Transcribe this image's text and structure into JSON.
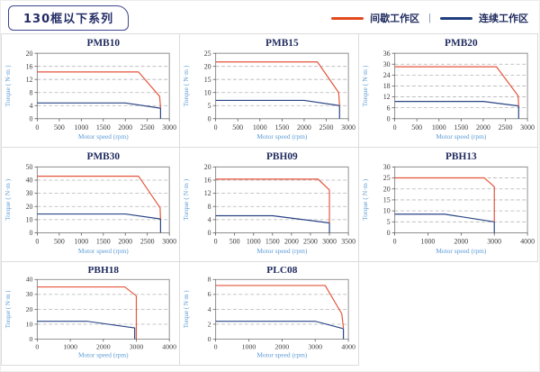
{
  "header": {
    "title": "130框以下系列",
    "legend_separator": "|",
    "legend": [
      {
        "label": "间歇工作区",
        "color": "#e2491f"
      },
      {
        "label": "连续工作区",
        "color": "#1f3e7d"
      }
    ]
  },
  "colors": {
    "intermittent": "#e4553c",
    "continuous": "#2a4485"
  },
  "chart_data": [
    {
      "type": "line",
      "title": "PMB10",
      "xlabel": "Motor speed (rpm)",
      "ylabel": "Torque ( N·m )",
      "xlim": [
        0,
        3000
      ],
      "ylim": [
        0,
        20
      ],
      "xticks": [
        0,
        500,
        1000,
        1500,
        2000,
        2500,
        3000
      ],
      "yticks": [
        0,
        4,
        8,
        12,
        16,
        20
      ],
      "grid": "dashed-horizontal",
      "legend_position": "none",
      "series": [
        {
          "name": "间歇工作区",
          "color": "intermittent",
          "points": [
            [
              0,
              14.3
            ],
            [
              2300,
              14.3
            ],
            [
              2780,
              6.8
            ],
            [
              2800,
              3.4
            ]
          ]
        },
        {
          "name": "连续工作区",
          "color": "continuous",
          "points": [
            [
              0,
              4.8
            ],
            [
              2000,
              4.8
            ],
            [
              2800,
              3.2
            ],
            [
              2800,
              0
            ]
          ]
        }
      ]
    },
    {
      "type": "line",
      "title": "PMB15",
      "xlabel": "Motor speed (rpm)",
      "ylabel": "Torque ( N·m )",
      "xlim": [
        0,
        3000
      ],
      "ylim": [
        0,
        25
      ],
      "xticks": [
        0,
        500,
        1000,
        1500,
        2000,
        2500,
        3000
      ],
      "yticks": [
        0,
        5,
        10,
        15,
        20,
        25
      ],
      "grid": "dashed-horizontal",
      "legend_position": "none",
      "series": [
        {
          "name": "间歇工作区",
          "color": "intermittent",
          "points": [
            [
              0,
              21.7
            ],
            [
              2300,
              21.7
            ],
            [
              2780,
              10
            ],
            [
              2800,
              5
            ]
          ]
        },
        {
          "name": "连续工作区",
          "color": "continuous",
          "points": [
            [
              0,
              7
            ],
            [
              2000,
              7
            ],
            [
              2800,
              5
            ],
            [
              2800,
              0
            ]
          ]
        }
      ]
    },
    {
      "type": "line",
      "title": "PMB20",
      "xlabel": "Motor speed (rpm)",
      "ylabel": "Torque ( N·m )",
      "xlim": [
        0,
        3000
      ],
      "ylim": [
        0,
        36
      ],
      "xticks": [
        0,
        500,
        1000,
        1500,
        2000,
        2500,
        3000
      ],
      "yticks": [
        0,
        6,
        12,
        18,
        24,
        30,
        36
      ],
      "grid": "dashed-horizontal",
      "legend_position": "none",
      "series": [
        {
          "name": "间歇工作区",
          "color": "intermittent",
          "points": [
            [
              0,
              28.6
            ],
            [
              2300,
              28.6
            ],
            [
              2790,
              12.5
            ],
            [
              2800,
              7
            ]
          ]
        },
        {
          "name": "连续工作区",
          "color": "continuous",
          "points": [
            [
              0,
              9.5
            ],
            [
              2000,
              9.5
            ],
            [
              2800,
              7
            ],
            [
              2800,
              0
            ]
          ]
        }
      ]
    },
    {
      "type": "line",
      "title": "PMB30",
      "xlabel": "Motor speed (rpm)",
      "ylabel": "Torque ( N·m )",
      "xlim": [
        0,
        3000
      ],
      "ylim": [
        0,
        50
      ],
      "xticks": [
        0,
        500,
        1000,
        1500,
        2000,
        2500,
        3000
      ],
      "yticks": [
        0,
        10,
        20,
        30,
        40,
        50
      ],
      "grid": "dashed-horizontal",
      "legend_position": "none",
      "series": [
        {
          "name": "间歇工作区",
          "color": "intermittent",
          "points": [
            [
              0,
              43
            ],
            [
              2300,
              43
            ],
            [
              2790,
              19
            ],
            [
              2800,
              10.5
            ]
          ]
        },
        {
          "name": "连续工作区",
          "color": "continuous",
          "points": [
            [
              0,
              14.3
            ],
            [
              2000,
              14.3
            ],
            [
              2800,
              10.5
            ],
            [
              2800,
              0
            ]
          ]
        }
      ]
    },
    {
      "type": "line",
      "title": "PBH09",
      "xlabel": "Motor speed (rpm)",
      "ylabel": "Torque ( N·m )",
      "xlim": [
        0,
        3500
      ],
      "ylim": [
        0,
        20
      ],
      "xticks": [
        0,
        500,
        1000,
        1500,
        2000,
        2500,
        3000,
        3500
      ],
      "yticks": [
        0,
        4,
        8,
        12,
        16,
        20
      ],
      "grid": "dashed-horizontal",
      "legend_position": "none",
      "series": [
        {
          "name": "间歇工作区",
          "color": "intermittent",
          "points": [
            [
              0,
              16.3
            ],
            [
              2700,
              16.3
            ],
            [
              3000,
              13
            ],
            [
              3000,
              3
            ]
          ]
        },
        {
          "name": "连续工作区",
          "color": "continuous",
          "points": [
            [
              0,
              5.2
            ],
            [
              1500,
              5.2
            ],
            [
              3000,
              3
            ],
            [
              3000,
              0
            ]
          ]
        }
      ]
    },
    {
      "type": "line",
      "title": "PBH13",
      "xlabel": "Motor speed (rpm)",
      "ylabel": "Torque ( N·m )",
      "xlim": [
        0,
        4000
      ],
      "ylim": [
        0,
        30
      ],
      "xticks": [
        0,
        1000,
        2000,
        3000,
        4000
      ],
      "yticks": [
        0,
        5,
        10,
        15,
        20,
        25,
        30
      ],
      "grid": "dashed-horizontal",
      "legend_position": "none",
      "series": [
        {
          "name": "间歇工作区",
          "color": "intermittent",
          "points": [
            [
              0,
              25
            ],
            [
              2700,
              25
            ],
            [
              3000,
              21
            ],
            [
              3000,
              5
            ]
          ]
        },
        {
          "name": "连续工作区",
          "color": "continuous",
          "points": [
            [
              0,
              8.5
            ],
            [
              1500,
              8.5
            ],
            [
              3000,
              5
            ],
            [
              3000,
              0
            ]
          ]
        }
      ]
    },
    {
      "type": "line",
      "title": "PBH18",
      "xlabel": "Motor speed (rpm)",
      "ylabel": "Torque ( N·m )",
      "xlim": [
        0,
        4000
      ],
      "ylim": [
        0,
        40
      ],
      "xticks": [
        0,
        1000,
        2000,
        3000,
        4000
      ],
      "yticks": [
        0,
        10,
        20,
        30,
        40
      ],
      "grid": "dashed-horizontal",
      "legend_position": "none",
      "series": [
        {
          "name": "间歇工作区",
          "color": "intermittent",
          "points": [
            [
              0,
              35
            ],
            [
              2650,
              35
            ],
            [
              3000,
              29
            ],
            [
              3000,
              0
            ]
          ]
        },
        {
          "name": "连续工作区",
          "color": "continuous",
          "points": [
            [
              0,
              12
            ],
            [
              1500,
              12
            ],
            [
              2950,
              7.5
            ],
            [
              2950,
              0
            ]
          ]
        }
      ]
    },
    {
      "type": "line",
      "title": "PLC08",
      "xlabel": "Motor speed (rpm)",
      "ylabel": "Torque ( N·m )",
      "xlim": [
        0,
        4000
      ],
      "ylim": [
        0,
        8
      ],
      "xticks": [
        0,
        1000,
        2000,
        3000,
        4000
      ],
      "yticks": [
        0,
        2,
        4,
        6,
        8
      ],
      "grid": "dashed-horizontal",
      "legend_position": "none",
      "series": [
        {
          "name": "间歇工作区",
          "color": "intermittent",
          "points": [
            [
              0,
              7.2
            ],
            [
              3300,
              7.2
            ],
            [
              3800,
              3.4
            ],
            [
              3850,
              1.5
            ]
          ]
        },
        {
          "name": "连续工作区",
          "color": "continuous",
          "points": [
            [
              0,
              2.4
            ],
            [
              3000,
              2.4
            ],
            [
              3850,
              1.4
            ],
            [
              3850,
              0
            ]
          ]
        }
      ]
    }
  ]
}
